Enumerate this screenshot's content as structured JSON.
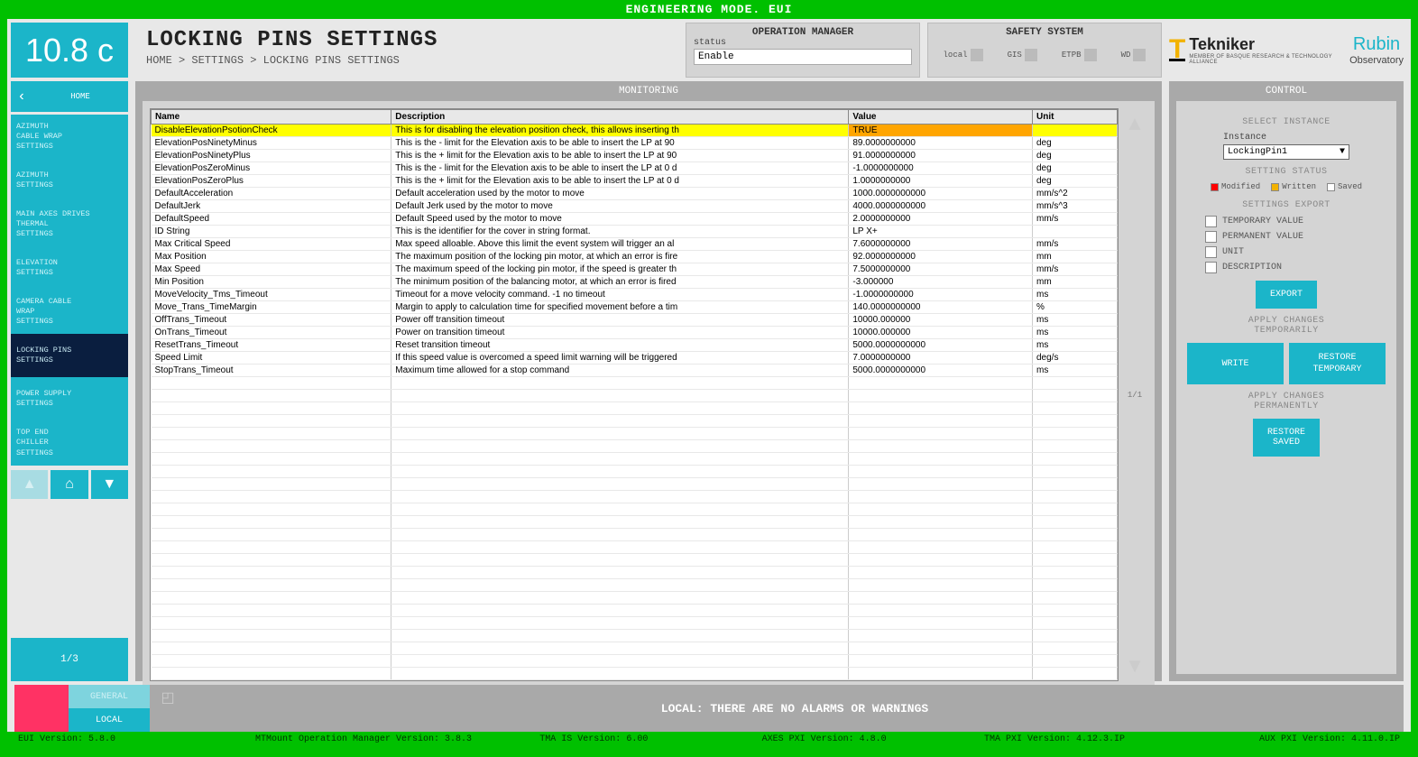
{
  "banner": "ENGINEERING MODE. EUI",
  "version_badge": "10.8 c",
  "page_title": "LOCKING PINS SETTINGS",
  "breadcrumb": "HOME > SETTINGS > LOCKING PINS SETTINGS",
  "op_manager": {
    "title": "OPERATION MANAGER",
    "status_label": "status",
    "status_value": "Enable"
  },
  "safety": {
    "title": "SAFETY SYSTEM",
    "items": [
      "local",
      "GIS",
      "ETPB",
      "WD"
    ]
  },
  "logos": {
    "tekniker": "Tekniker",
    "tekniker_sub": "MEMBER OF BASQUE RESEARCH & TECHNOLOGY ALLIANCE",
    "rubin": "Rubin",
    "rubin_sub": "Observatory"
  },
  "sidebar": {
    "home": "HOME",
    "items": [
      {
        "label": "AZIMUTH\nCABLE WRAP\nSETTINGS",
        "active": false
      },
      {
        "label": "AZIMUTH\nSETTINGS",
        "active": false
      },
      {
        "label": "MAIN AXES DRIVES\nTHERMAL\nSETTINGS",
        "active": false
      },
      {
        "label": "ELEVATION\nSETTINGS",
        "active": false
      },
      {
        "label": "CAMERA CABLE\nWRAP\nSETTINGS",
        "active": false
      },
      {
        "label": "LOCKING PINS\nSETTINGS",
        "active": true
      },
      {
        "label": "POWER SUPPLY\nSETTINGS",
        "active": false
      },
      {
        "label": "TOP END\nCHILLER\nSETTINGS",
        "active": false
      }
    ],
    "pager": "1/3"
  },
  "monitoring": {
    "title": "MONITORING",
    "columns": [
      "Name",
      "Description",
      "Value",
      "Unit"
    ],
    "rows": [
      {
        "hl": true,
        "name": "DisableElevationPsotionCheck",
        "desc": "This is for disabling the elevation position check, this allows inserting th",
        "val": "TRUE",
        "unit": ""
      },
      {
        "name": "ElevationPosNinetyMinus",
        "desc": "This is the - limit for the Elevation axis to be able to insert the LP at 90",
        "val": "89.0000000000",
        "unit": "deg"
      },
      {
        "name": "ElevationPosNinetyPlus",
        "desc": "This is the + limit for the Elevation axis to be able to insert the LP at 90",
        "val": "91.0000000000",
        "unit": "deg"
      },
      {
        "name": "ElevationPosZeroMinus",
        "desc": "This is the - limit for the Elevation axis to be able to insert the LP at 0 d",
        "val": "-1.0000000000",
        "unit": "deg"
      },
      {
        "name": "ElevationPosZeroPlus",
        "desc": "This is the + limit for the Elevation axis to be able to insert the LP at 0 d",
        "val": "1.0000000000",
        "unit": "deg"
      },
      {
        "name": "DefaultAcceleration",
        "desc": "Default acceleration used by the motor to move",
        "val": "1000.0000000000",
        "unit": "mm/s^2"
      },
      {
        "name": "DefaultJerk",
        "desc": "Default Jerk used by the motor to move",
        "val": "4000.0000000000",
        "unit": "mm/s^3"
      },
      {
        "name": "DefaultSpeed",
        "desc": "Default Speed used by the motor to move",
        "val": "2.0000000000",
        "unit": "mm/s"
      },
      {
        "name": "ID String",
        "desc": "This is the identifier for the cover in string format.",
        "val": "LP X+",
        "unit": ""
      },
      {
        "name": "Max Critical Speed",
        "desc": "Max speed alloable. Above this limit the event system will trigger an al",
        "val": "7.6000000000",
        "unit": "mm/s"
      },
      {
        "name": "Max Position",
        "desc": "The maximum position of the locking pin motor, at which an error is fire",
        "val": "92.0000000000",
        "unit": "mm"
      },
      {
        "name": "Max Speed",
        "desc": "The maximum speed of the locking pin motor, if the speed is greater th",
        "val": "7.5000000000",
        "unit": "mm/s"
      },
      {
        "name": "Min Position",
        "desc": "The minimum position of the balancing motor, at which an error is fired",
        "val": "-3.000000",
        "unit": "mm"
      },
      {
        "name": "MoveVelocity_Tms_Timeout",
        "desc": "Timeout for a move velocity command. -1 no timeout",
        "val": "-1.0000000000",
        "unit": "ms"
      },
      {
        "name": "Move_Trans_TimeMargin",
        "desc": "Margin to apply to calculation time for specified movement before a tim",
        "val": "140.0000000000",
        "unit": "%"
      },
      {
        "name": "OffTrans_Timeout",
        "desc": "Power off transition timeout",
        "val": "10000.000000",
        "unit": "ms"
      },
      {
        "name": "OnTrans_Timeout",
        "desc": "Power on transition timeout",
        "val": "10000.000000",
        "unit": "ms"
      },
      {
        "name": "ResetTrans_Timeout",
        "desc": "Reset transition timeout",
        "val": "5000.0000000000",
        "unit": "ms"
      },
      {
        "name": "Speed Limit",
        "desc": "If this speed value is overcomed a speed limit warning will be triggered",
        "val": "7.0000000000",
        "unit": "deg/s"
      },
      {
        "name": "StopTrans_Timeout",
        "desc": "Maximum time allowed for a stop command",
        "val": "5000.0000000000",
        "unit": "ms"
      }
    ],
    "blank_rows": 24,
    "scroll_page": "1/1"
  },
  "control": {
    "title": "CONTROL",
    "select_instance_title": "SELECT INSTANCE",
    "instance_label": "Instance",
    "instance_value": "LockingPin1",
    "setting_status_title": "SETTING STATUS",
    "legend": [
      {
        "label": "Modified",
        "color": "#ff0000"
      },
      {
        "label": "Written",
        "color": "#f2b200"
      },
      {
        "label": "Saved",
        "color": "#ffffff"
      }
    ],
    "export_title": "SETTINGS EXPORT",
    "export_opts": [
      "TEMPORARY VALUE",
      "PERMANENT VALUE",
      "UNIT",
      "DESCRIPTION"
    ],
    "export_btn": "EXPORT",
    "apply_temp_title": "APPLY CHANGES\nTEMPORARILY",
    "write_btn": "WRITE",
    "restore_temp_btn": "RESTORE\nTEMPORARY",
    "apply_perm_title": "APPLY CHANGES\nPERMANENTLY",
    "restore_saved_btn": "RESTORE\nSAVED"
  },
  "footer": {
    "general": "GENERAL",
    "local": "LOCAL",
    "message": "LOCAL: THERE ARE NO ALARMS OR WARNINGS"
  },
  "bottom": [
    "EUI Version: 5.8.0",
    "MTMount Operation Manager Version: 3.8.3",
    "TMA IS Version: 6.00",
    "AXES PXI Version: 4.8.0",
    "TMA PXI Version: 4.12.3.IP",
    "AUX PXI Version: 4.11.0.IP"
  ],
  "colors": {
    "green": "#00c000",
    "cyan": "#1bb5c9",
    "cyan_light": "#7ed4de",
    "dark_nav": "#0a1e3f",
    "gray_panel": "#a9a9a9",
    "gray_body": "#d4d4d4",
    "gray_bg": "#e8e8e8",
    "highlight": "#ffff00",
    "highlight_val": "#ffa500",
    "red": "#ff3264"
  }
}
